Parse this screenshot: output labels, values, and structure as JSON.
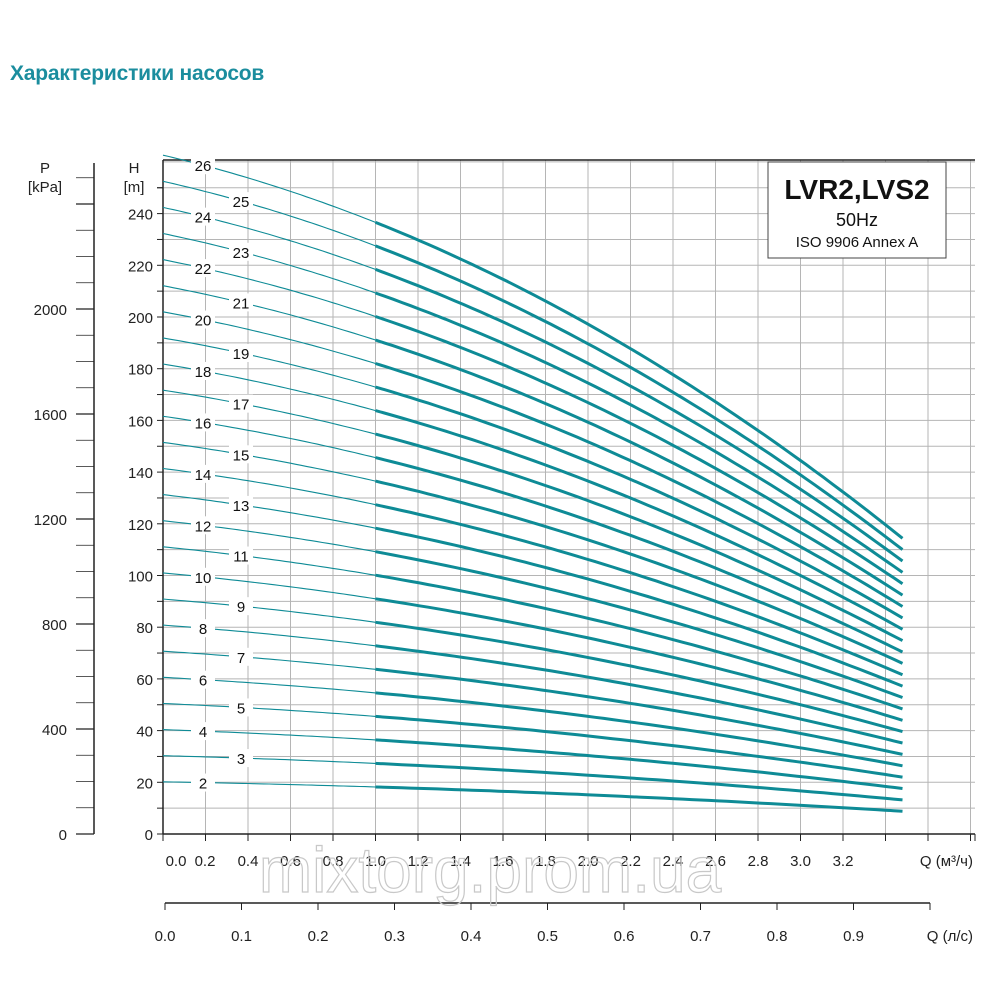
{
  "page_title": "Характеристики насосов",
  "watermark": "mixtorg.prom.ua",
  "legend_box": {
    "model": "LVR2,LVS2",
    "frequency": "50Hz",
    "standard": "ISO 9906 Annex A"
  },
  "colors": {
    "curve": "#0e8b96",
    "title": "#1b8d9e",
    "grid": "#b5b5b5",
    "axis": "#222222"
  },
  "chart_data": {
    "type": "line",
    "title": "LVR2,LVS2",
    "y_left_outer": {
      "label": "P",
      "unit": "[kPa]",
      "range": [
        0,
        2500
      ],
      "ticks": [
        0,
        400,
        800,
        1200,
        1600,
        2000
      ],
      "tick_labels": [
        "0",
        "400",
        "800",
        "1200",
        "1600",
        "2000"
      ]
    },
    "y_left": {
      "label": "H",
      "unit": "[m]",
      "range": [
        0,
        260
      ],
      "ticks": [
        0,
        20,
        40,
        60,
        80,
        100,
        120,
        140,
        160,
        180,
        200,
        220,
        240
      ],
      "tick_labels": [
        "0",
        "20",
        "40",
        "60",
        "80",
        "100",
        "120",
        "140",
        "160",
        "180",
        "200",
        "220",
        "240"
      ]
    },
    "x_top": {
      "label": "Q (м³/ч)",
      "range": [
        0,
        3.8
      ],
      "tick_labels": [
        "0.0",
        "0.2",
        "0.4",
        "0.6",
        "0.8",
        "1.0",
        "1.2",
        "1.4",
        "1.6",
        "1.8",
        "2.0",
        "2.2",
        "2.4",
        "2.6",
        "2.8",
        "3.0",
        "3.2"
      ]
    },
    "x_bottom": {
      "label": "Q (л/с)",
      "range": [
        0,
        1.05
      ],
      "tick_labels": [
        "0.0",
        "0.1",
        "0.2",
        "0.3",
        "0.4",
        "0.5",
        "0.6",
        "0.7",
        "0.8",
        "0.9"
      ]
    },
    "grid": true,
    "recommended_range_start_q": 1.0,
    "q_max": 3.48,
    "head_per_stage_points": {
      "q": [
        0,
        1.0,
        2.4,
        3.48
      ],
      "h": [
        10.1,
        9.1,
        6.8,
        4.4
      ]
    },
    "series": [
      {
        "name": "2",
        "stages": 2
      },
      {
        "name": "3",
        "stages": 3
      },
      {
        "name": "4",
        "stages": 4
      },
      {
        "name": "5",
        "stages": 5
      },
      {
        "name": "6",
        "stages": 6
      },
      {
        "name": "7",
        "stages": 7
      },
      {
        "name": "8",
        "stages": 8
      },
      {
        "name": "9",
        "stages": 9
      },
      {
        "name": "10",
        "stages": 10
      },
      {
        "name": "11",
        "stages": 11
      },
      {
        "name": "12",
        "stages": 12
      },
      {
        "name": "13",
        "stages": 13
      },
      {
        "name": "14",
        "stages": 14
      },
      {
        "name": "15",
        "stages": 15
      },
      {
        "name": "16",
        "stages": 16
      },
      {
        "name": "17",
        "stages": 17
      },
      {
        "name": "18",
        "stages": 18
      },
      {
        "name": "19",
        "stages": 19
      },
      {
        "name": "20",
        "stages": 20
      },
      {
        "name": "21",
        "stages": 21
      },
      {
        "name": "22",
        "stages": 22
      },
      {
        "name": "23",
        "stages": 23
      },
      {
        "name": "24",
        "stages": 24
      },
      {
        "name": "25",
        "stages": 25
      },
      {
        "name": "26",
        "stages": 26
      }
    ]
  }
}
